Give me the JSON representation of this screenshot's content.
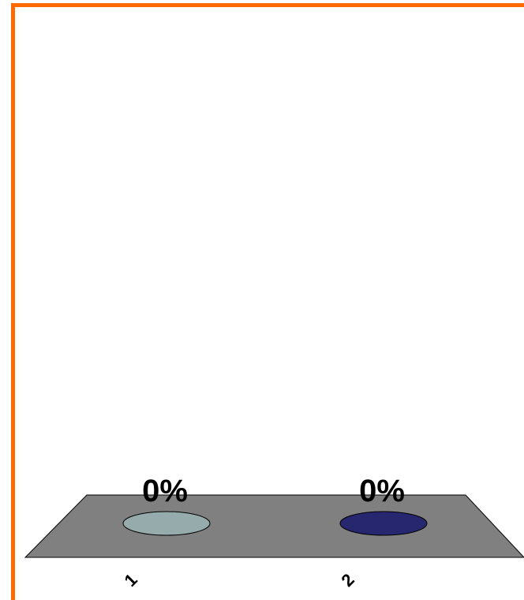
{
  "colors": {
    "frame": "#FF6A00",
    "floor": "#808080",
    "floor_stroke": "#000000",
    "series_1": "#96ABAB",
    "series_2": "#26276E"
  },
  "chart_data": {
    "type": "bar",
    "title": "",
    "xlabel": "",
    "ylabel": "",
    "categories": [
      "1",
      "2"
    ],
    "values": [
      0,
      0
    ],
    "value_labels": [
      "0%",
      "0%"
    ],
    "ylim": [
      0,
      100
    ],
    "grid": false,
    "legend": "none",
    "style": "3d-cylinder"
  }
}
